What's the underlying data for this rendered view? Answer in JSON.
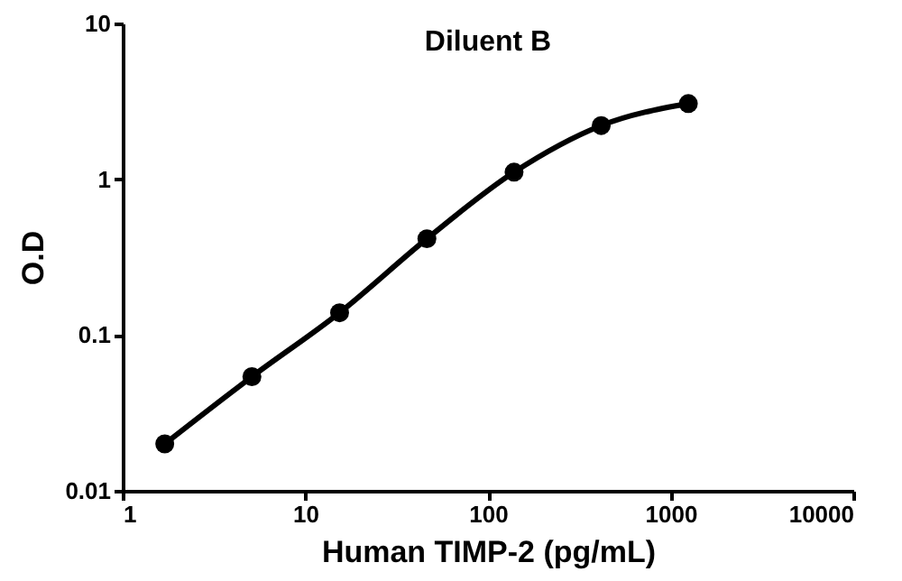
{
  "chart_data": {
    "type": "line",
    "title": "Diluent B",
    "xlabel": "Human TIMP-2 (pg/mL)",
    "ylabel": "O.D",
    "x": [
      1.7,
      5.1,
      15.4,
      46.3,
      138.9,
      416.7,
      1250
    ],
    "series": [
      {
        "color": "#000000",
        "values": [
          0.02,
          0.054,
          0.139,
          0.415,
          1.11,
          2.21,
          3.06
        ]
      }
    ],
    "xlim": [
      1,
      10000
    ],
    "ylim": [
      0.01,
      10
    ],
    "xticks": [
      1,
      10,
      100,
      1000,
      10000
    ],
    "yticks": [
      0.01,
      0.1,
      1,
      10
    ],
    "log": "xy",
    "marker": "circle",
    "line_style": "solid",
    "grid": false
  }
}
